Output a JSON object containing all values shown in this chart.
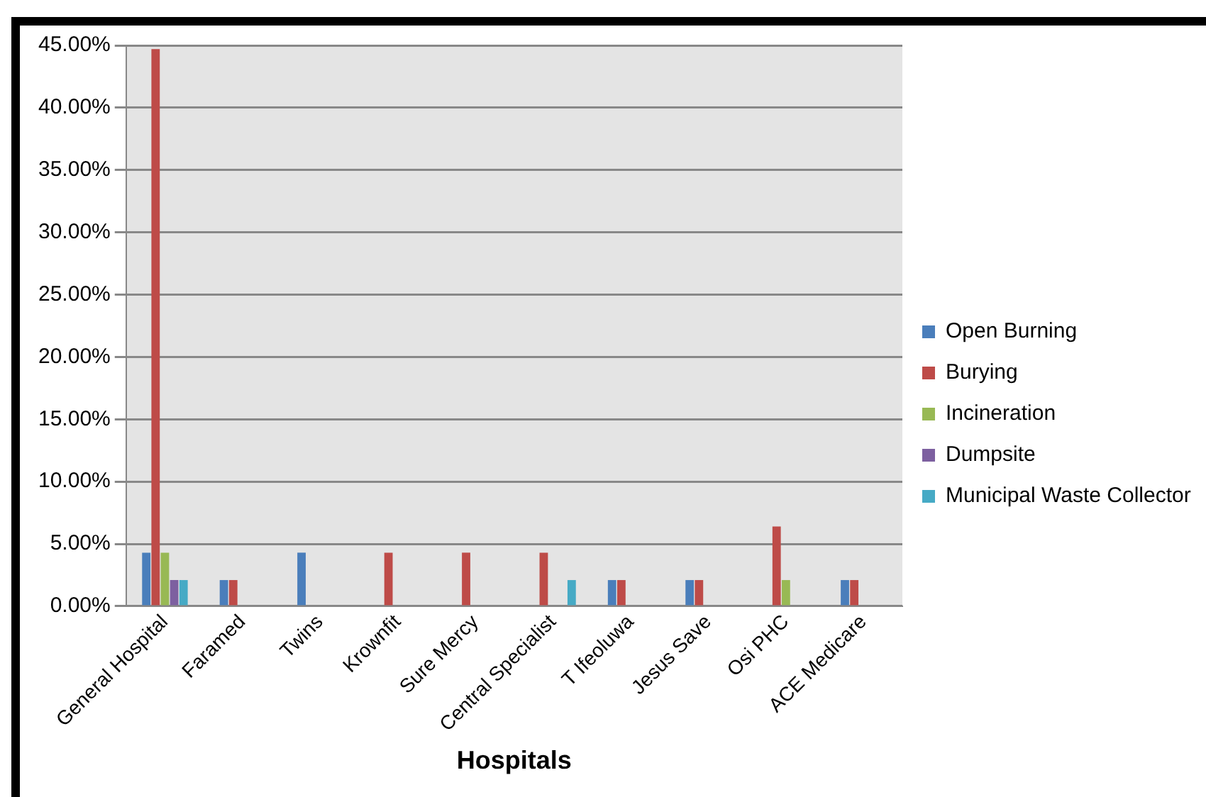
{
  "chart_data": {
    "type": "bar",
    "xlabel": "Hospitals",
    "categories": [
      "General Hospital",
      "Faramed",
      "Twins",
      "Krownfit",
      "Sure Mercy",
      "Central Specialist",
      "T Ifeoluwa",
      "Jesus Save",
      "Osi PHC",
      "ACE Medicare"
    ],
    "series": [
      {
        "name": "Open Burning",
        "color": "#4a7ebb",
        "values": [
          4.3,
          2.1,
          4.3,
          0,
          0,
          0,
          2.1,
          2.1,
          0,
          2.1
        ]
      },
      {
        "name": "Burying",
        "color": "#be4b48",
        "values": [
          44.7,
          2.1,
          0,
          4.3,
          4.3,
          4.3,
          2.1,
          2.1,
          6.4,
          2.1
        ]
      },
      {
        "name": "Incineration",
        "color": "#98b954",
        "values": [
          4.3,
          0,
          0,
          0,
          0,
          0,
          0,
          0,
          2.1,
          0
        ]
      },
      {
        "name": "Dumpsite",
        "color": "#7d60a0",
        "values": [
          2.1,
          0,
          0,
          0,
          0,
          0,
          0,
          0,
          0,
          0
        ]
      },
      {
        "name": "Municipal Waste Collector",
        "color": "#46aac5",
        "values": [
          2.1,
          0,
          0,
          0,
          0,
          2.1,
          0,
          0,
          0,
          0
        ]
      }
    ],
    "ylim": [
      0,
      45
    ],
    "yticks": [
      {
        "value": 0,
        "label": "0.00%"
      },
      {
        "value": 5,
        "label": "5.00%"
      },
      {
        "value": 10,
        "label": "10.00%"
      },
      {
        "value": 15,
        "label": "15.00%"
      },
      {
        "value": 20,
        "label": "20.00%"
      },
      {
        "value": 25,
        "label": "25.00%"
      },
      {
        "value": 30,
        "label": "30.00%"
      },
      {
        "value": 35,
        "label": "35.00%"
      },
      {
        "value": 40,
        "label": "40.00%"
      },
      {
        "value": 45,
        "label": "45.00%"
      }
    ],
    "grid": "y",
    "legend": "right"
  }
}
